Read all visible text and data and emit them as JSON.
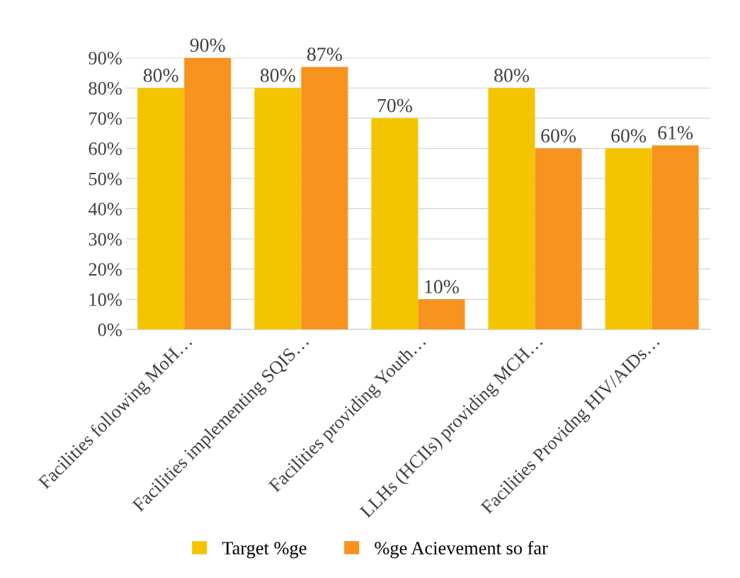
{
  "chart_data": {
    "type": "bar",
    "categories": [
      "Facilities following MoH…",
      "Facilities implementing SQIS…",
      "Facilities providing Youth…",
      "LLHs (HCIIs) providing MCH…",
      "Facilities Providng HIV/AIDs…"
    ],
    "series": [
      {
        "name": "Target %ge",
        "color": "#f5c400",
        "values": [
          80,
          80,
          70,
          80,
          60
        ],
        "value_labels": [
          "80%",
          "80%",
          "70%",
          "80%",
          "60%"
        ]
      },
      {
        "name": "%ge Acievement so far",
        "color": "#f7931e",
        "values": [
          90,
          87,
          10,
          60,
          61
        ],
        "value_labels": [
          "90%",
          "87%",
          "10%",
          "60%",
          "61%"
        ]
      }
    ],
    "ylim": [
      0,
      90
    ],
    "yticks": [
      {
        "value": 0,
        "label": "0%"
      },
      {
        "value": 10,
        "label": "10%"
      },
      {
        "value": 20,
        "label": "20%"
      },
      {
        "value": 30,
        "label": "30%"
      },
      {
        "value": 40,
        "label": "40%"
      },
      {
        "value": 50,
        "label": "50%"
      },
      {
        "value": 60,
        "label": "60%"
      },
      {
        "value": 70,
        "label": "70%"
      },
      {
        "value": 80,
        "label": "80%"
      },
      {
        "value": 90,
        "label": "90%"
      }
    ],
    "grid": "y",
    "legend": "bottom"
  }
}
